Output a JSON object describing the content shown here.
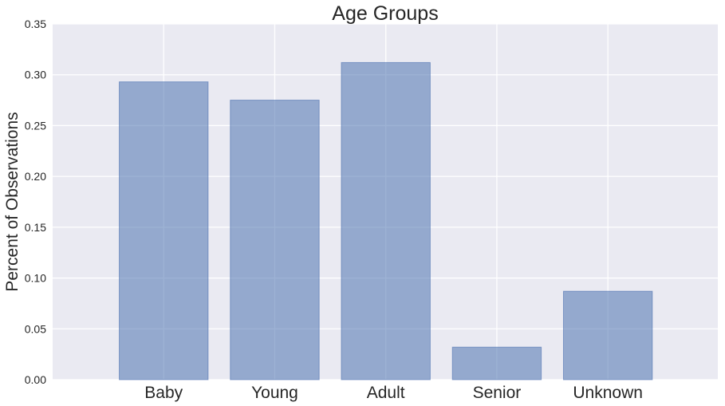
{
  "chart_data": {
    "type": "bar",
    "title": "Age Groups",
    "xlabel": "",
    "ylabel": "Percent of Observations",
    "categories": [
      "Baby",
      "Young",
      "Adult",
      "Senior",
      "Unknown"
    ],
    "values": [
      0.293,
      0.275,
      0.312,
      0.032,
      0.087
    ],
    "ylim": [
      0,
      0.35
    ],
    "yticks": [
      "0.00",
      "0.05",
      "0.10",
      "0.15",
      "0.20",
      "0.25",
      "0.30",
      "0.35"
    ],
    "grid": true,
    "colors": {
      "background": "#eaeaf2",
      "bar": "#4c72b0",
      "grid": "#ffffff",
      "text": "#262626"
    }
  }
}
